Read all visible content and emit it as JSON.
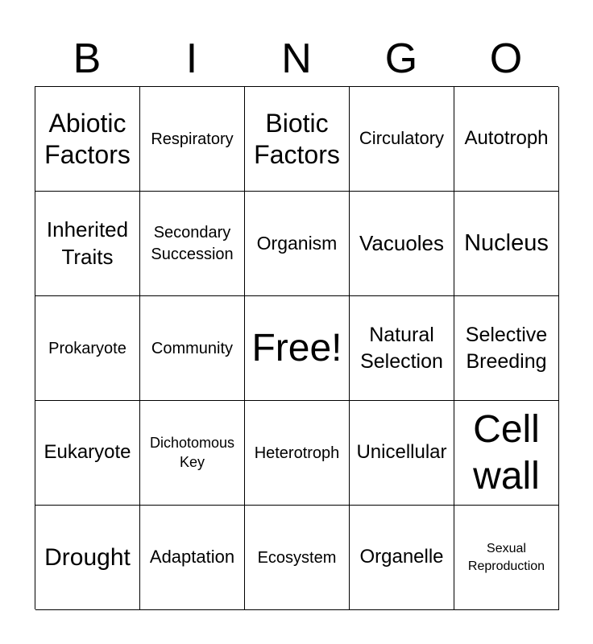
{
  "header": [
    "B",
    "I",
    "N",
    "G",
    "O"
  ],
  "cells": [
    "Abiotic Factors",
    "Respiratory",
    "Biotic Factors",
    "Circulatory",
    "Autotroph",
    "Inherited Traits",
    "Secondary Succession",
    "Organism",
    "Vacuoles",
    "Nucleus",
    "Prokaryote",
    "Community",
    "Free!",
    "Natural Selection",
    "Selective Breeding",
    "Eukaryote",
    "Dichotomous Key",
    "Heterotroph",
    "Unicellular",
    "Cell wall",
    "Drought",
    "Adaptation",
    "Ecosystem",
    "Organelle",
    "Sexual Reproduction"
  ]
}
